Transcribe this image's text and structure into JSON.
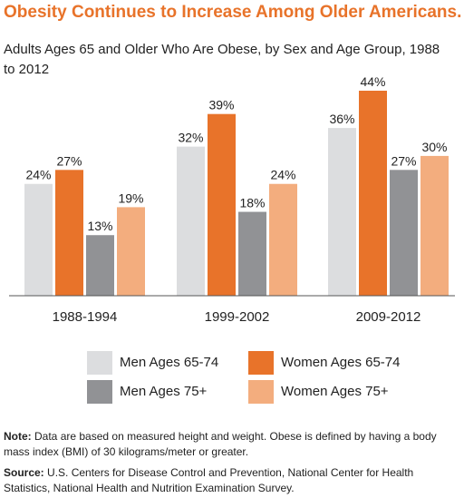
{
  "title": "Obesity Continues to Increase Among Older Americans.",
  "subtitle": "Adults Ages 65 and Older Who Are Obese, by Sex and Age Group, 1988 to 2012",
  "chart_data": {
    "type": "bar",
    "title": "Adults Ages 65 and Older Who Are Obese, by Sex and Age Group, 1988 to 2012",
    "categories": [
      "1988-1994",
      "1999-2002",
      "2009-2012"
    ],
    "series": [
      {
        "name": "Men Ages 65-74",
        "values": [
          24,
          32,
          36
        ],
        "labels": [
          "24%",
          "32%",
          "36%"
        ],
        "color": "#dcdddf"
      },
      {
        "name": "Women Ages 65-74",
        "values": [
          27,
          39,
          44
        ],
        "labels": [
          "27%",
          "39%",
          "44%"
        ],
        "color": "#e8732a"
      },
      {
        "name": "Men Ages 75+",
        "values": [
          13,
          18,
          27
        ],
        "labels": [
          "13%",
          "18%",
          "27%"
        ],
        "color": "#919295"
      },
      {
        "name": "Women Ages 75+",
        "values": [
          19,
          24,
          30
        ],
        "labels": [
          "19%",
          "24%",
          "30%"
        ],
        "color": "#f3ad7e"
      }
    ],
    "ylim": [
      0,
      44
    ],
    "grid": false,
    "legend_position": "bottom"
  },
  "note": {
    "label": "Note:",
    "text": " Data are based on measured height and weight. Obese is defined by having a body mass index (BMI) of 30 kilograms/meter or greater."
  },
  "source": {
    "label": "Source:",
    "text": " U.S. Centers for Disease Control and Prevention, National Center for Health Statistics, National Health and Nutrition Examination Survey."
  },
  "colors": {
    "title": "#e8732a",
    "axis": "#555555"
  }
}
